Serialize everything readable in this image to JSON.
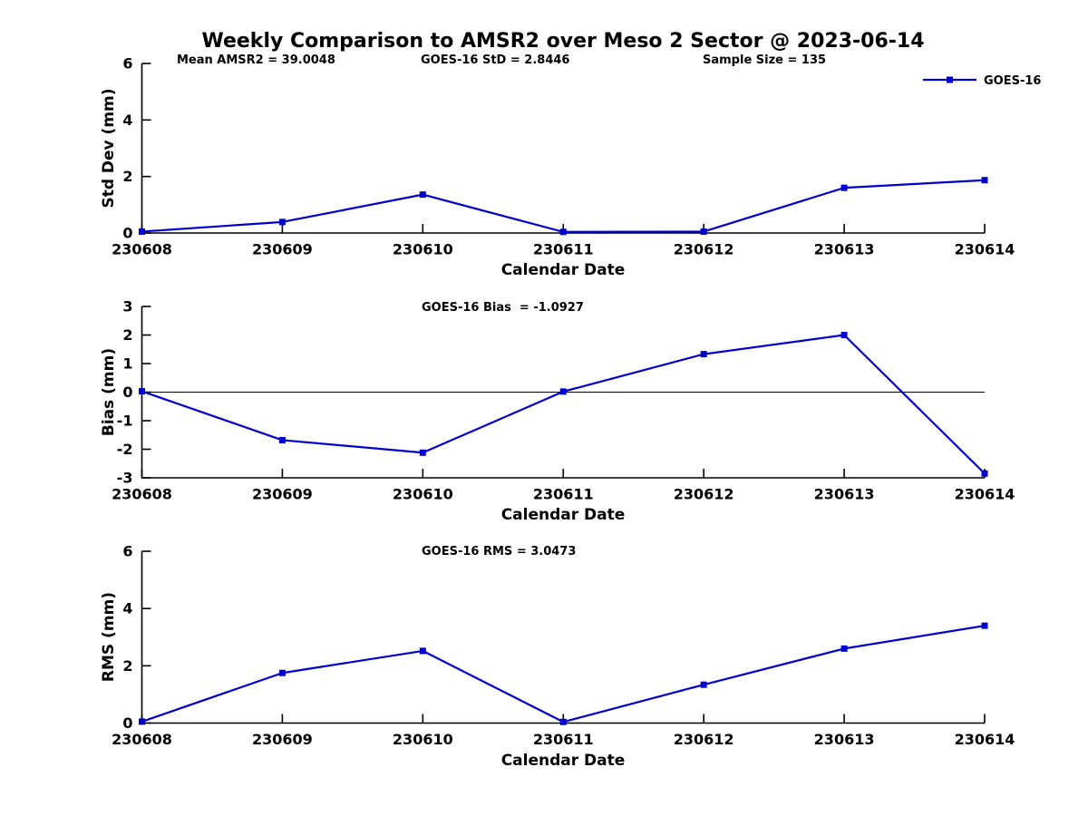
{
  "title": "Weekly Comparison to AMSR2 over Meso 2 Sector @ 2023-06-14",
  "annotations": {
    "mean_amsr2": "Mean AMSR2 = 39.0048",
    "goes16_std": "GOES-16 StD = 2.8446",
    "sample_size": "Sample Size = 135",
    "goes16_bias": "GOES-16 Bias  = -1.0927",
    "goes16_rms": "GOES-16 RMS = 3.0473"
  },
  "legend": {
    "label": "GOES-16",
    "position": "top-right",
    "marker": "filled-square"
  },
  "colors": {
    "series": "#0000CC",
    "axis": "#000000",
    "background": "#ffffff"
  },
  "chart_data": [
    {
      "type": "line",
      "title": "",
      "categories": [
        "230608",
        "230609",
        "230610",
        "230611",
        "230612",
        "230613",
        "230614"
      ],
      "series": [
        {
          "name": "GOES-16",
          "values": [
            0.05,
            0.39,
            1.36,
            0.04,
            0.05,
            1.6,
            1.87
          ]
        }
      ],
      "xlabel": "Calendar Date",
      "ylabel": "Std Dev (mm)",
      "ylim": [
        0,
        6
      ],
      "yticks": [
        0,
        2,
        4,
        6
      ],
      "zero_line": false,
      "grid": false,
      "marker": "square"
    },
    {
      "type": "line",
      "title": "",
      "categories": [
        "230608",
        "230609",
        "230610",
        "230611",
        "230612",
        "230613",
        "230614"
      ],
      "series": [
        {
          "name": "GOES-16",
          "values": [
            0.03,
            -1.68,
            -2.12,
            0.02,
            1.33,
            2.0,
            -2.85
          ]
        }
      ],
      "xlabel": "Calendar Date",
      "ylabel": "Bias (mm)",
      "ylim": [
        -3,
        3
      ],
      "yticks": [
        -3,
        -2,
        -1,
        0,
        1,
        2,
        3
      ],
      "zero_line": true,
      "grid": false,
      "marker": "square"
    },
    {
      "type": "line",
      "title": "",
      "categories": [
        "230608",
        "230609",
        "230610",
        "230611",
        "230612",
        "230613",
        "230614"
      ],
      "series": [
        {
          "name": "GOES-16",
          "values": [
            0.05,
            1.75,
            2.52,
            0.04,
            1.34,
            2.6,
            3.4
          ]
        }
      ],
      "xlabel": "Calendar Date",
      "ylabel": "RMS (mm)",
      "ylim": [
        0,
        6
      ],
      "yticks": [
        0,
        2,
        4,
        6
      ],
      "zero_line": false,
      "grid": false,
      "marker": "square"
    }
  ]
}
